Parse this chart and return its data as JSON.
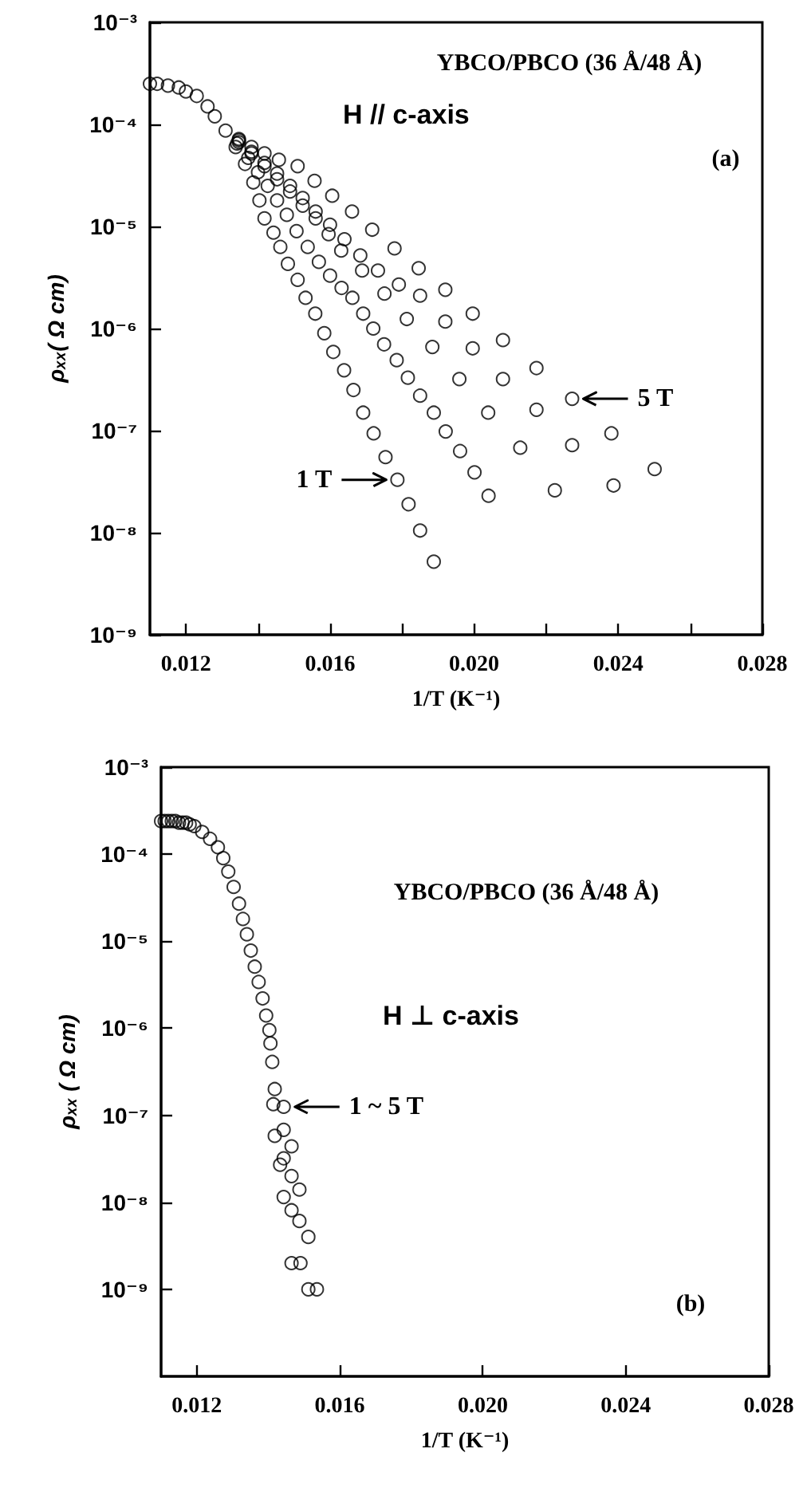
{
  "chart_data": [
    {
      "type": "scatter",
      "xlabel": "1/T (K⁻¹)",
      "ylabel": "ρₓₓ( Ω cm)",
      "log": "y",
      "marker": "circle",
      "annotations": [
        "YBCO/PBCO (36 Å/48 Å)",
        "H // c-axis",
        "(a)",
        {
          "text": "1 T",
          "x": 0.01787,
          "y": 3.3e-08
        },
        {
          "text": "5 T",
          "x": 0.02272,
          "y": 2.05e-07
        }
      ],
      "xlim": [
        0.011,
        0.028
      ],
      "xticks": [
        0.012,
        {
          "value": 0.014,
          "label": null
        },
        0.016,
        {
          "value": 0.018,
          "label": null
        },
        {
          "value": 0.02,
          "label": "0.020"
        },
        {
          "value": 0.022,
          "label": null
        },
        0.024,
        {
          "value": 0.026,
          "label": null
        },
        0.028
      ],
      "ylim": [
        1e-09,
        0.001
      ],
      "yticks": [
        {
          "value": 1e-09,
          "label": "10⁻⁹"
        },
        {
          "value": 1e-08,
          "label": "10⁻⁸"
        },
        {
          "value": 1e-07,
          "label": "10⁻⁷"
        },
        {
          "value": 1e-06,
          "label": "10⁻⁶"
        },
        {
          "value": 1e-05,
          "label": "10⁻⁵"
        },
        {
          "value": 0.0001,
          "label": "10⁻⁴"
        },
        {
          "value": 0.001,
          "label": "10⁻³"
        }
      ],
      "series": [
        {
          "color": "#000000",
          "x": [
            0.011,
            0.0112,
            0.0115,
            0.0118,
            0.012,
            0.0123,
            0.0126,
            0.0128,
            0.0131,
            0.01338,
            0.01364,
            0.01387,
            0.01404,
            0.01418,
            0.01443,
            0.01462,
            0.01483,
            0.0151,
            0.01532,
            0.01559,
            0.01584,
            0.01609,
            0.01639,
            0.01665,
            0.01692,
            0.01721,
            0.01754,
            0.01787,
            0.01818,
            0.0185,
            0.01888
          ],
          "values": [
            0.00025,
            0.00025,
            0.00024,
            0.00023,
            0.00021,
            0.00019,
            0.00015,
            0.00012,
            8.7e-05,
            6e-05,
            4.1e-05,
            2.7e-05,
            1.8e-05,
            1.2e-05,
            8.7e-06,
            6.3e-06,
            4.3e-06,
            3e-06,
            2e-06,
            1.4e-06,
            9e-07,
            5.9e-07,
            3.9e-07,
            2.5e-07,
            1.5e-07,
            9.4e-08,
            5.5e-08,
            3.3e-08,
            1.9e-08,
            1.05e-08,
            5.2e-09
          ]
        },
        {
          "color": "#000000",
          "x": [
            0.01342,
            0.01373,
            0.014,
            0.01427,
            0.01453,
            0.0148,
            0.01507,
            0.01538,
            0.01569,
            0.016,
            0.01632,
            0.01662,
            0.01692,
            0.0172,
            0.0175,
            0.01785,
            0.01816,
            0.0185,
            0.01888,
            0.01921,
            0.01961,
            0.02001,
            0.0204
          ],
          "values": [
            6.5e-05,
            4.7e-05,
            3.4e-05,
            2.5e-05,
            1.8e-05,
            1.3e-05,
            9e-06,
            6.3e-06,
            4.5e-06,
            3.3e-06,
            2.5e-06,
            2e-06,
            1.4e-06,
            1e-06,
            7e-07,
            4.9e-07,
            3.3e-07,
            2.2e-07,
            1.5e-07,
            9.8e-08,
            6.3e-08,
            3.9e-08,
            2.3e-08
          ]
        },
        {
          "color": "#000000",
          "x": [
            0.01347,
            0.01382,
            0.01418,
            0.01453,
            0.01489,
            0.01524,
            0.0156,
            0.01596,
            0.01631,
            0.01689,
            0.01751,
            0.01813,
            0.01884,
            0.01959,
            0.02039,
            0.02128,
            0.02224
          ],
          "values": [
            6.7e-05,
            5.2e-05,
            3.9e-05,
            2.9e-05,
            2.2e-05,
            1.6e-05,
            1.2e-05,
            8.4e-06,
            5.8e-06,
            3.7e-06,
            2.2e-06,
            1.24e-06,
            6.6e-07,
            3.2e-07,
            1.5e-07,
            6.8e-08,
            2.6e-08
          ]
        },
        {
          "color": "#000000",
          "x": [
            0.01347,
            0.01382,
            0.01418,
            0.01453,
            0.01489,
            0.01524,
            0.0156,
            0.016,
            0.0164,
            0.01684,
            0.01733,
            0.01791,
            0.0185,
            0.0192,
            0.01996,
            0.0208,
            0.02173,
            0.02272,
            0.02387
          ],
          "values": [
            7e-05,
            5.4e-05,
            4.2e-05,
            3.3e-05,
            2.5e-05,
            1.9e-05,
            1.4e-05,
            1.04e-05,
            7.5e-06,
            5.2e-06,
            3.7e-06,
            2.7e-06,
            2.1e-06,
            1.17e-06,
            6.4e-07,
            3.2e-07,
            1.6e-07,
            7.2e-08,
            2.9e-08
          ]
        },
        {
          "color": "#000000",
          "x": [
            0.01347,
            0.01382,
            0.01418,
            0.01458,
            0.0151,
            0.01557,
            0.01606,
            0.01661,
            0.01717,
            0.01779,
            0.01846,
            0.0192,
            0.01996,
            0.0208,
            0.02173,
            0.02272,
            0.02381,
            0.02501
          ],
          "values": [
            7.2e-05,
            6e-05,
            5.2e-05,
            4.5e-05,
            3.9e-05,
            2.8e-05,
            2e-05,
            1.4e-05,
            9.3e-06,
            6.1e-06,
            3.9e-06,
            2.4e-06,
            1.4e-06,
            7.7e-07,
            4.1e-07,
            2.05e-07,
            9.4e-08,
            4.2e-08
          ]
        }
      ]
    },
    {
      "type": "scatter",
      "xlabel": "1/T (K⁻¹)",
      "ylabel": "ρₓₓ ( Ω cm)",
      "log": "y",
      "marker": "circle",
      "annotations": [
        "YBCO/PBCO (36 Å/48 Å)",
        "H ⊥ c-axis",
        "(b)",
        {
          "text": "1 ~ 5 T",
          "x": 0.01443,
          "y": 1.25e-07
        }
      ],
      "xlim": [
        0.011,
        0.028
      ],
      "xticks": [
        0.012,
        0.016,
        {
          "value": 0.02,
          "label": "0.020"
        },
        0.024,
        0.028
      ],
      "ylim": [
        1e-10,
        0.001
      ],
      "yticks": [
        {
          "value": 1e-09,
          "label": "10⁻⁹"
        },
        {
          "value": 1e-08,
          "label": "10⁻⁸"
        },
        {
          "value": 1e-07,
          "label": "10⁻⁷"
        },
        {
          "value": 1e-06,
          "label": "10⁻⁶"
        },
        {
          "value": 1e-05,
          "label": "10⁻⁵"
        },
        {
          "value": 0.0001,
          "label": "10⁻⁴"
        },
        {
          "value": 0.001,
          "label": "10⁻³"
        }
      ],
      "series": [
        {
          "color": "#000000",
          "x": [
            0.011,
            0.0111,
            0.0112,
            0.0113,
            0.0114,
            0.0115,
            0.0116,
            0.0117,
            0.0118,
            0.01193,
            0.01215,
            0.01237,
            0.01259,
            0.01274,
            0.01288,
            0.01303,
            0.01318,
            0.01329,
            0.0134,
            0.01351,
            0.01362,
            0.01373,
            0.01384,
            0.01394,
            0.01403,
            0.01406,
            0.01411,
            0.01418,
            0.01414,
            0.01443,
            0.01443,
            0.01418,
            0.01465,
            0.01443,
            0.01433,
            0.01465,
            0.01487,
            0.01443,
            0.01465,
            0.01487,
            0.01512,
            0.01465,
            0.0149,
            0.01512,
            0.01536
          ],
          "values": [
            0.00024,
            0.00024,
            0.00024,
            0.00024,
            0.00024,
            0.00023,
            0.00023,
            0.00023,
            0.00022,
            0.00021,
            0.00018,
            0.00015,
            0.00012,
            9e-05,
            6.3e-05,
            4.2e-05,
            2.7e-05,
            1.8e-05,
            1.2e-05,
            7.8e-06,
            5.1e-06,
            3.4e-06,
            2.2e-06,
            1.4e-06,
            9.5e-07,
            6.7e-07,
            4.1e-07,
            2e-07,
            1.34e-07,
            1.25e-07,
            6.8e-08,
            5.8e-08,
            4.4e-08,
            3.2e-08,
            2.7e-08,
            2e-08,
            1.4e-08,
            1.15e-08,
            8.1e-09,
            6.1e-09,
            4e-09,
            2e-09,
            2e-09,
            1e-09,
            1e-09
          ]
        }
      ]
    }
  ]
}
